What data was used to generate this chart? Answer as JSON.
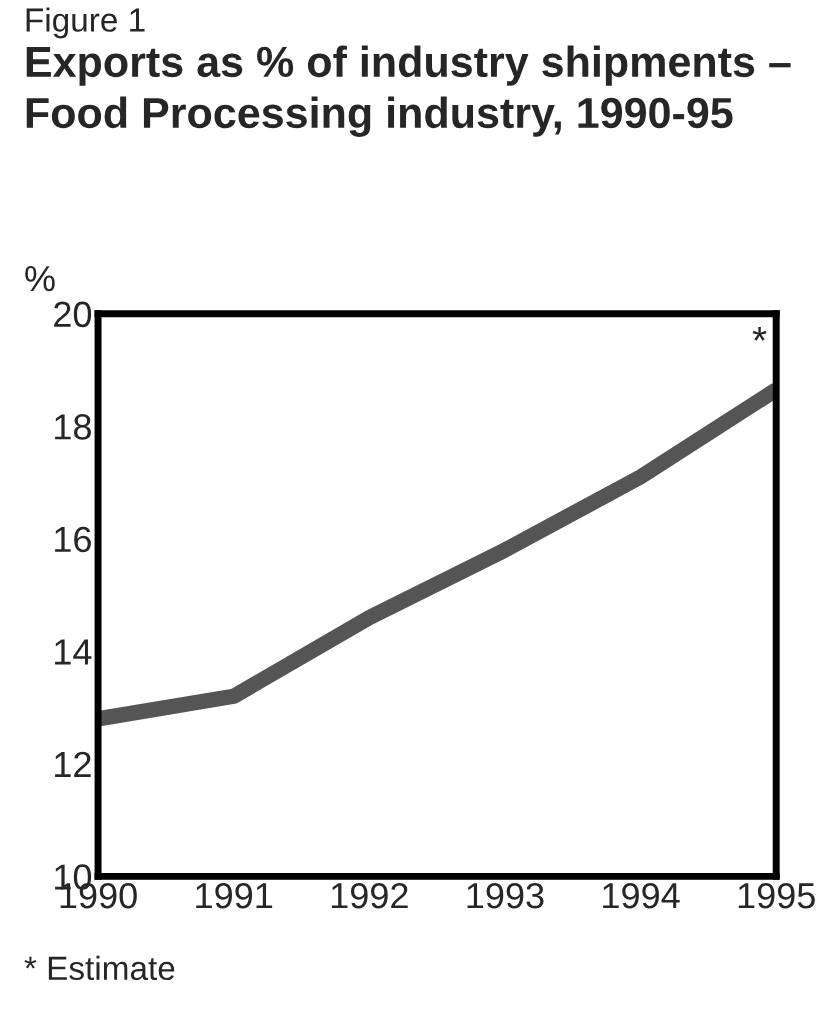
{
  "chart_data": {
    "type": "line",
    "subtitle": "Figure 1",
    "title": "Exports as % of industry shipments – Food Processing industry, 1990-95",
    "ylabel": "%",
    "x": [
      1990,
      1991,
      1992,
      1993,
      1994,
      1995
    ],
    "series": [
      {
        "color": "#555555",
        "values": [
          12.8,
          13.2,
          14.6,
          15.8,
          17.1,
          18.65
        ]
      }
    ],
    "xlim": [
      1990,
      1995
    ],
    "xticks": [
      1990,
      1991,
      1992,
      1993,
      1994,
      1995
    ],
    "ylim": [
      10,
      20
    ],
    "yticks": [
      10,
      12,
      14,
      16,
      18,
      20
    ],
    "grid": false,
    "legend": false,
    "marker": "none",
    "line_style": "solid",
    "annotations": [
      {
        "text": "*",
        "x": 1995,
        "y": 18.65
      },
      "* Estimate"
    ]
  }
}
